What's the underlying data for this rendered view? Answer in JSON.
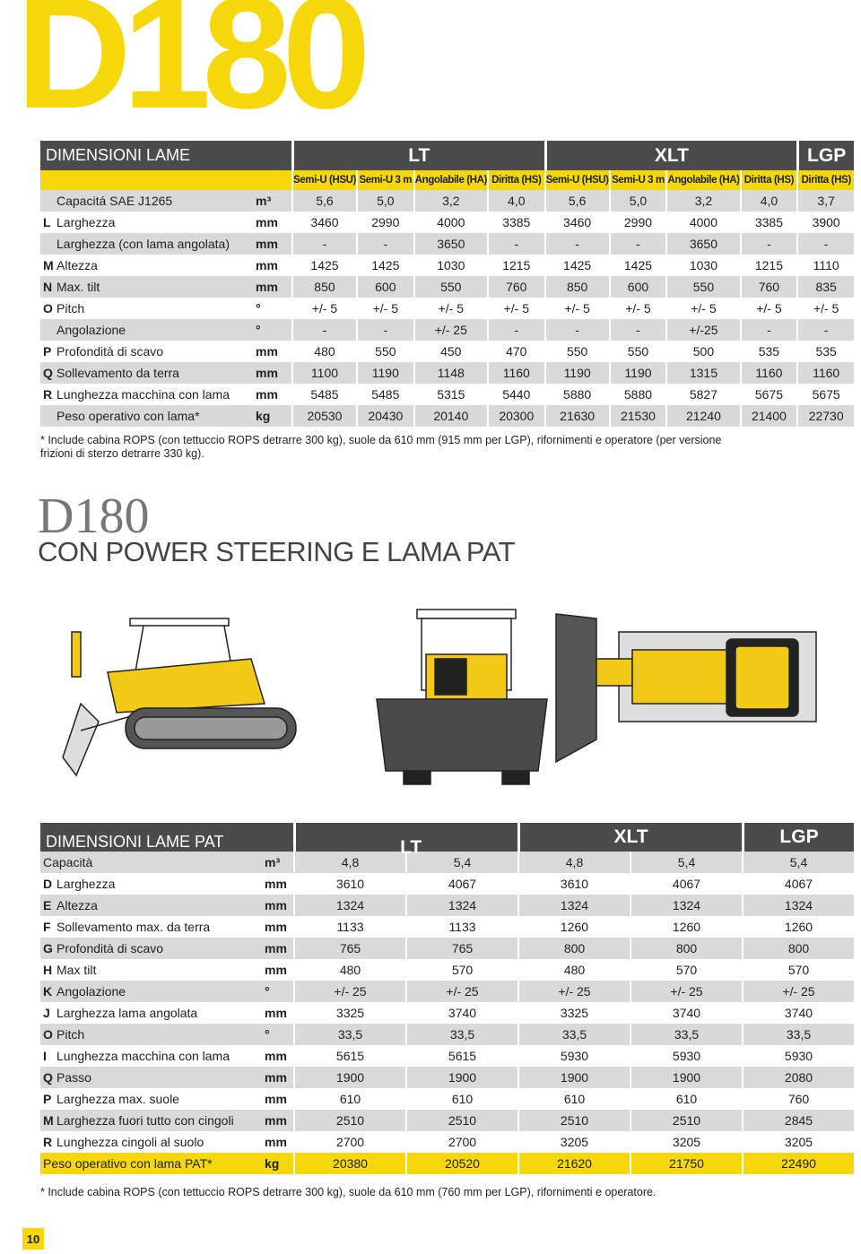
{
  "page_title": "D180",
  "table1": {
    "title": "DIMENSIONI LAME",
    "groups": [
      {
        "label": "LT",
        "columns": [
          "Semi-U (HSU)",
          "Semi-U 3 m",
          "Angolabile (HA)",
          "Diritta (HS)"
        ]
      },
      {
        "label": "XLT",
        "columns": [
          "Semi-U (HSU)",
          "Semi-U 3 m",
          "Angolabile (HA)",
          "Diritta (HS)"
        ]
      },
      {
        "label": "LGP",
        "columns": [
          "Diritta (HS)"
        ]
      }
    ],
    "rows": [
      {
        "label": "Capacitá SAE J1265",
        "unit": "m³",
        "values": [
          "5,6",
          "5,0",
          "3,2",
          "4,0",
          "5,6",
          "5,0",
          "3,2",
          "4,0",
          "3,7"
        ]
      },
      {
        "letter": "L",
        "label": "Larghezza",
        "unit": "mm",
        "values": [
          "3460",
          "2990",
          "4000",
          "3385",
          "3460",
          "2990",
          "4000",
          "3385",
          "3900"
        ]
      },
      {
        "label": "Larghezza (con lama angolata)",
        "unit": "mm",
        "values": [
          "-",
          "-",
          "3650",
          "-",
          "-",
          "-",
          "3650",
          "-",
          "-"
        ]
      },
      {
        "letter": "M",
        "label": "Altezza",
        "unit": "mm",
        "values": [
          "1425",
          "1425",
          "1030",
          "1215",
          "1425",
          "1425",
          "1030",
          "1215",
          "1110"
        ]
      },
      {
        "letter": "N",
        "label": "Max. tilt",
        "unit": "mm",
        "values": [
          "850",
          "600",
          "550",
          "760",
          "850",
          "600",
          "550",
          "760",
          "835"
        ]
      },
      {
        "letter": "O",
        "label": "Pitch",
        "unit": "°",
        "values": [
          "+/- 5",
          "+/- 5",
          "+/- 5",
          "+/- 5",
          "+/- 5",
          "+/- 5",
          "+/- 5",
          "+/- 5",
          "+/- 5"
        ]
      },
      {
        "label": "Angolazione",
        "unit": "°",
        "values": [
          "-",
          "-",
          "+/- 25",
          "-",
          "-",
          "-",
          "+/-25",
          "-",
          "-"
        ]
      },
      {
        "letter": "P",
        "label": "Profondità di scavo",
        "unit": "mm",
        "values": [
          "480",
          "550",
          "450",
          "470",
          "550",
          "550",
          "500",
          "535",
          "535"
        ]
      },
      {
        "letter": "Q",
        "label": "Sollevamento  da terra",
        "unit": "mm",
        "values": [
          "1100",
          "1190",
          "1148",
          "1160",
          "1190",
          "1190",
          "1315",
          "1160",
          "1160"
        ]
      },
      {
        "letter": "R",
        "label": "Lunghezza macchina con lama",
        "unit": "mm",
        "values": [
          "5485",
          "5485",
          "5315",
          "5440",
          "5880",
          "5880",
          "5827",
          "5675",
          "5675"
        ]
      },
      {
        "label": "Peso operativo con lama*",
        "unit": "kg",
        "values": [
          "20530",
          "20430",
          "20140",
          "20300",
          "21630",
          "21530",
          "21240",
          "21400",
          "22730"
        ]
      }
    ],
    "footnote": "* Include cabina ROPS (con tettuccio ROPS detrarre 300 kg), suole da 610 mm (915 mm per LGP), rifornimenti e operatore (per versione frizioni di sterzo detrarre 330 kg)."
  },
  "section": {
    "model": "D180",
    "subtitle": "CON POWER STEERING E LAMA PAT"
  },
  "table2": {
    "title": "DIMENSIONI LAME PAT",
    "groups": [
      "LT",
      "XLT",
      "LGP"
    ],
    "rows": [
      {
        "label": "Capacità",
        "unit": "m³",
        "values": [
          [
            "4,8",
            "5,4"
          ],
          [
            "4,8",
            "5,4"
          ],
          [
            "5,4"
          ]
        ]
      },
      {
        "letter": "D",
        "label": "Larghezza",
        "unit": "mm",
        "values": [
          [
            "3610",
            "4067"
          ],
          [
            "3610",
            "4067"
          ],
          [
            "4067"
          ]
        ]
      },
      {
        "letter": "E",
        "label": "Altezza",
        "unit": "mm",
        "values": [
          [
            "1324",
            "1324"
          ],
          [
            "1324",
            "1324"
          ],
          [
            "1324"
          ]
        ]
      },
      {
        "letter": "F",
        "label": "Sollevamento max. da terra",
        "unit": "mm",
        "values": [
          [
            "1133",
            "1133"
          ],
          [
            "1260",
            "1260"
          ],
          [
            "1260"
          ]
        ]
      },
      {
        "letter": "G",
        "label": "Profondità di scavo",
        "unit": "mm",
        "values": [
          [
            "765",
            "765"
          ],
          [
            "800",
            "800"
          ],
          [
            "800"
          ]
        ]
      },
      {
        "letter": "H",
        "label": "Max tilt",
        "unit": "mm",
        "values": [
          [
            "480",
            "570"
          ],
          [
            "480",
            "570"
          ],
          [
            "570"
          ]
        ]
      },
      {
        "letter": "K",
        "label": "Angolazione",
        "unit": "°",
        "values": [
          [
            "+/- 25",
            "+/- 25"
          ],
          [
            "+/- 25",
            "+/- 25"
          ],
          [
            "+/- 25"
          ]
        ]
      },
      {
        "letter": "J",
        "label": "Larghezza lama angolata",
        "unit": "mm",
        "values": [
          [
            "3325",
            "3740"
          ],
          [
            "3325",
            "3740"
          ],
          [
            "3740"
          ]
        ]
      },
      {
        "letter": "O",
        "label": "Pitch",
        "unit": "°",
        "values": [
          [
            "33,5",
            "33,5"
          ],
          [
            "33,5",
            "33,5"
          ],
          [
            "33,5"
          ]
        ]
      },
      {
        "letter": "I",
        "label": "Lunghezza macchina con lama",
        "unit": "mm",
        "values": [
          [
            "5615",
            "5615"
          ],
          [
            "5930",
            "5930"
          ],
          [
            "5930"
          ]
        ]
      },
      {
        "letter": "Q",
        "label": "Passo",
        "unit": "mm",
        "values": [
          [
            "1900",
            "1900"
          ],
          [
            "1900",
            "1900"
          ],
          [
            "2080"
          ]
        ]
      },
      {
        "letter": "P",
        "label": "Larghezza max. suole",
        "unit": "mm",
        "values": [
          [
            "610",
            "610"
          ],
          [
            "610",
            "610"
          ],
          [
            "760"
          ]
        ]
      },
      {
        "letter": "M",
        "label": "Larghezza fuori tutto con cingoli",
        "unit": "mm",
        "values": [
          [
            "2510",
            "2510"
          ],
          [
            "2510",
            "2510"
          ],
          [
            "2845"
          ]
        ]
      },
      {
        "letter": "R",
        "label": "Lunghezza cingoli al suolo",
        "unit": "mm",
        "values": [
          [
            "2700",
            "2700"
          ],
          [
            "3205",
            "3205"
          ],
          [
            "3205"
          ]
        ]
      },
      {
        "label": "Peso operativo con lama PAT*",
        "unit": "kg",
        "values": [
          [
            "20380",
            "20520"
          ],
          [
            "21620",
            "21750"
          ],
          [
            "22490"
          ]
        ]
      }
    ],
    "footnote": "* Include cabina ROPS (con tettuccio ROPS detrarre 300 kg), suole da 610 mm (760 mm per LGP), rifornimenti e operatore."
  },
  "page_number": "10"
}
